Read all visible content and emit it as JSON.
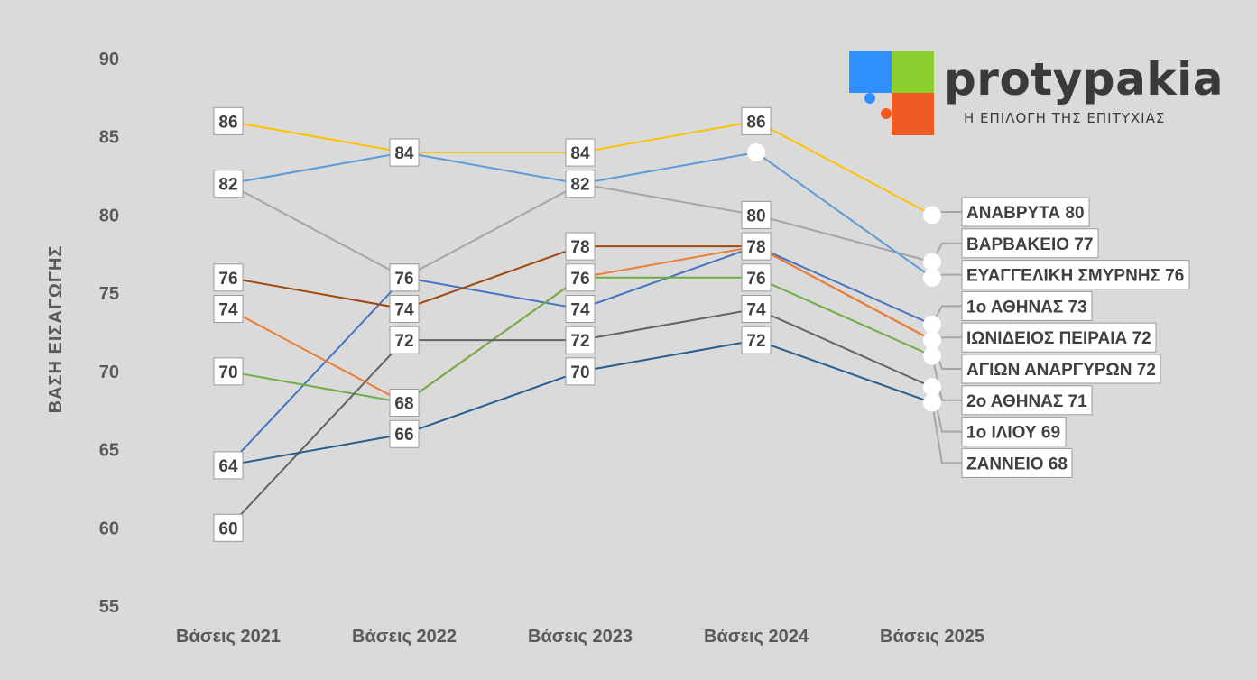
{
  "logo": {
    "brand": "protypakia",
    "slogan": "Η ΕΠΙΛΟΓΗ ΤΗΣ ΕΠΙΤΥΧΙΑΣ",
    "colors": [
      "#2f8fff",
      "#8ccf2f",
      "#f25a23"
    ]
  },
  "chart_data": {
    "type": "line",
    "title": "",
    "xlabel": "",
    "ylabel": "ΒΑΣΗ ΕΙΣΑΓΩΓΗΣ",
    "ylim": [
      55,
      90
    ],
    "yticks": [
      55,
      60,
      65,
      70,
      75,
      80,
      85,
      90
    ],
    "categories": [
      "Βάσεις 2021",
      "Βάσεις 2022",
      "Βάσεις 2023",
      "Βάσεις 2024",
      "Βάσεις 2025"
    ],
    "grid": false,
    "series": [
      {
        "name": "ΑΝΑΒΡΥΤΑ",
        "label": "ΑΝΑΒΡΥΤΑ 80",
        "color": "#ffc000",
        "values": [
          86,
          84,
          84,
          86,
          80
        ],
        "shown": [
          true,
          true,
          true,
          true,
          false
        ]
      },
      {
        "name": "ΒΑΡΒΑΚΕΙΟ",
        "label": "ΒΑΡΒΑΚΕΙΟ 77",
        "color": "#a5a5a5",
        "values": [
          82,
          76,
          82,
          80,
          77
        ],
        "shown": [
          true,
          true,
          true,
          true,
          false
        ]
      },
      {
        "name": "ΕΥΑΓΓΕΛΙΚΗ ΣΜΥΡΝΗΣ",
        "label": "ΕΥΑΓΓΕΛΙΚΗ ΣΜΥΡΝΗΣ 76",
        "color": "#5b9bd5",
        "values": [
          82,
          84,
          82,
          84,
          76
        ],
        "shown": [
          false,
          true,
          false,
          false,
          false
        ]
      },
      {
        "name": "1ο ΑΘΗΝΑΣ",
        "label": "1ο ΑΘΗΝΑΣ 73",
        "color": "#4472c4",
        "values": [
          64,
          76,
          74,
          78,
          73
        ],
        "shown": [
          true,
          true,
          true,
          false,
          false
        ]
      },
      {
        "name": "ΙΩΝΙΔΕΙΟΣ ΠΕΙΡΑΙΑ",
        "label": "ΙΩΝΙΔΕΙΟΣ ΠΕΙΡΑΙΑ 72",
        "color": "#9e480e",
        "values": [
          76,
          74,
          78,
          78,
          72
        ],
        "shown": [
          true,
          true,
          true,
          true,
          false
        ]
      },
      {
        "name": "ΑΓΙΩΝ ΑΝΑΡΓΥΡΩΝ",
        "label": "ΑΓΙΩΝ ΑΝΑΡΓΥΡΩΝ 72",
        "color": "#ed7d31",
        "values": [
          74,
          68,
          76,
          78,
          72
        ],
        "shown": [
          true,
          false,
          false,
          false,
          false
        ]
      },
      {
        "name": "2ο ΑΘΗΝΑΣ",
        "label": "2ο ΑΘΗΝΑΣ 71",
        "color": "#70ad47",
        "values": [
          70,
          68,
          76,
          76,
          71
        ],
        "shown": [
          true,
          true,
          true,
          true,
          false
        ]
      },
      {
        "name": "1ο ΙΛΙΟΥ",
        "label": "1ο ΙΛΙΟΥ 69",
        "color": "#636363",
        "values": [
          60,
          72,
          72,
          74,
          69
        ],
        "shown": [
          true,
          true,
          true,
          true,
          false
        ]
      },
      {
        "name": "ΖΑΝΝΕΙΟ",
        "label": "ΖΑΝΝΕΙΟ 68",
        "color": "#255e91",
        "values": [
          64,
          66,
          70,
          72,
          68
        ],
        "shown": [
          false,
          true,
          true,
          true,
          false
        ]
      }
    ]
  }
}
